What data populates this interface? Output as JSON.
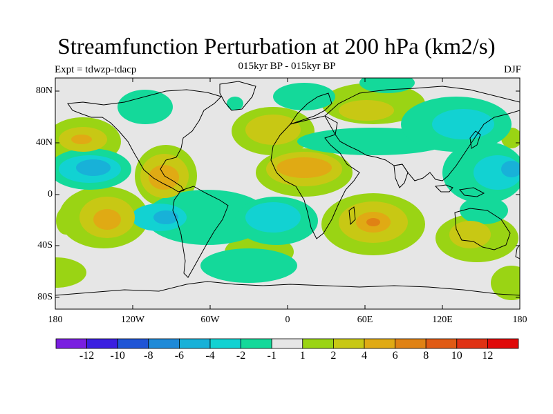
{
  "title": "Streamfunction Perturbation at 200 hPa (km2/s)",
  "subtitle": "015kyr BP - 015kyr BP",
  "experiment": "Expt = tdwzp-tdacp",
  "season": "DJF",
  "lat_labels": [
    "80N",
    "40N",
    "0",
    "40S",
    "80S"
  ],
  "lon_labels": [
    "180",
    "120W",
    "60W",
    "0",
    "60E",
    "120E",
    "180"
  ],
  "colorbar": {
    "labels": [
      "-12",
      "-10",
      "-8",
      "-6",
      "-4",
      "-2",
      "-1",
      "1",
      "2",
      "4",
      "6",
      "8",
      "10",
      "12"
    ],
    "colors": [
      "#7a1ee0",
      "#3b1ee0",
      "#1f55d6",
      "#1e8ad8",
      "#18b1d8",
      "#12d2d2",
      "#14d99a",
      "#e6e6e6",
      "#9ad414",
      "#c8c814",
      "#e0aa14",
      "#e08214",
      "#e05a14",
      "#e03214",
      "#e00a0a"
    ]
  },
  "chart_data": {
    "type": "heatmap",
    "title": "Streamfunction Perturbation at 200 hPa (km2/s)",
    "subtitle": "015kyr BP - 015kyr BP",
    "projection": "cylindrical equidistant",
    "xlim": [
      -180,
      180
    ],
    "ylim": [
      -90,
      90
    ],
    "contour_levels": [
      -12,
      -10,
      -8,
      -6,
      -4,
      -2,
      -1,
      1,
      2,
      4,
      6,
      8,
      10,
      12
    ],
    "features": [
      {
        "name": "N Pacific high",
        "lon": -145,
        "lat": 42,
        "max": 6
      },
      {
        "name": "NE Pacific low",
        "lon": -150,
        "lat": 20,
        "min": -6
      },
      {
        "name": "Central America high",
        "lon": -93,
        "lat": 15,
        "max": 6
      },
      {
        "name": "North Atlantic high",
        "lon": -25,
        "lat": 48,
        "max": 4
      },
      {
        "name": "Saharan high",
        "lon": 10,
        "lat": 22,
        "max": 6
      },
      {
        "name": "Arabian high",
        "lon": 45,
        "lat": 20,
        "max": 4
      },
      {
        "name": "Siberian high",
        "lon": 50,
        "lat": 62,
        "max": 4
      },
      {
        "name": "NE Asia low",
        "lon": 120,
        "lat": 55,
        "min": -4
      },
      {
        "name": "W Pacific low",
        "lon": 160,
        "lat": 20,
        "min": -4
      },
      {
        "name": "SE Pacific high",
        "lon": -145,
        "lat": -25,
        "max": 6
      },
      {
        "name": "S Pacific low",
        "lon": -100,
        "lat": -20,
        "min": -4
      },
      {
        "name": "S Atlantic low",
        "lon": -25,
        "lat": -25,
        "min": -4
      },
      {
        "name": "Indian Ocean high",
        "lon": 65,
        "lat": -20,
        "max": 6
      },
      {
        "name": "Australia high",
        "lon": 125,
        "lat": -35,
        "max": 4
      }
    ]
  }
}
